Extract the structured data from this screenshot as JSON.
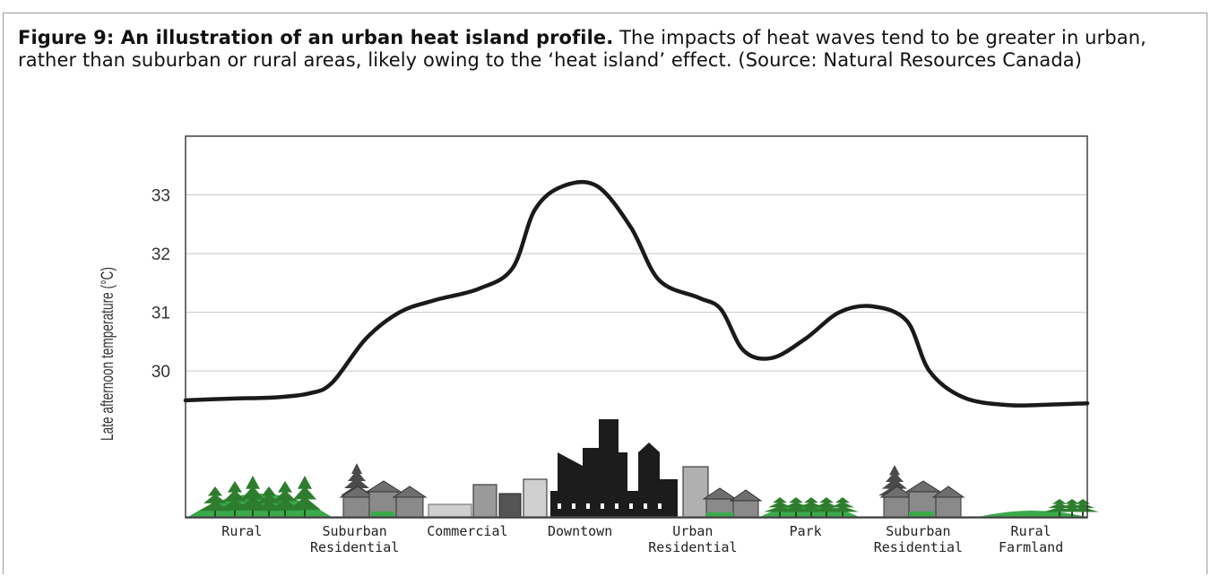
{
  "caption": {
    "label": "Figure 9: An illustration of an urban heat island profile.",
    "text": " The impacts of heat waves tend to be greater in urban, rather than suburban or rural areas, likely owing to the ‘heat island’ effect. (Source: Natural Resources Canada)"
  },
  "chart_data": {
    "type": "line",
    "title": "",
    "xlabel": "",
    "ylabel": "Late afternoon temperature (°C)",
    "yticks": [
      30,
      31,
      32,
      33
    ],
    "ylim": [
      27.5,
      34.0
    ],
    "grid": true,
    "categories": [
      [
        "Rural"
      ],
      [
        "Suburban",
        "Residential"
      ],
      [
        "Commercial"
      ],
      [
        "Downtown"
      ],
      [
        "Urban",
        "Residential"
      ],
      [
        "Park"
      ],
      [
        "Suburban",
        "Residential"
      ],
      [
        "Rural",
        "Farmland"
      ]
    ],
    "series": [
      {
        "points": [
          [
            0,
            29.5
          ],
          [
            0.4,
            29.53
          ],
          [
            0.8,
            29.55
          ],
          [
            1.1,
            29.62
          ],
          [
            1.3,
            29.8
          ],
          [
            1.6,
            30.55
          ],
          [
            1.9,
            31.0
          ],
          [
            2.2,
            31.2
          ],
          [
            2.6,
            31.4
          ],
          [
            2.9,
            31.75
          ],
          [
            3.1,
            32.75
          ],
          [
            3.35,
            33.15
          ],
          [
            3.65,
            33.15
          ],
          [
            3.95,
            32.45
          ],
          [
            4.2,
            31.55
          ],
          [
            4.55,
            31.25
          ],
          [
            4.75,
            31.05
          ],
          [
            4.95,
            30.35
          ],
          [
            5.2,
            30.22
          ],
          [
            5.5,
            30.55
          ],
          [
            5.8,
            31.0
          ],
          [
            6.1,
            31.1
          ],
          [
            6.4,
            30.85
          ],
          [
            6.6,
            30.0
          ],
          [
            6.9,
            29.55
          ],
          [
            7.3,
            29.42
          ],
          [
            7.7,
            29.43
          ],
          [
            8.0,
            29.45
          ]
        ]
      }
    ]
  },
  "colors": {
    "line": "#1a1a1a",
    "grid": "#c8c8c8",
    "tree": "#2e7d2e",
    "grass": "#3aaa4a",
    "house": "#8a8a8a",
    "building": "#1c1c1c"
  }
}
